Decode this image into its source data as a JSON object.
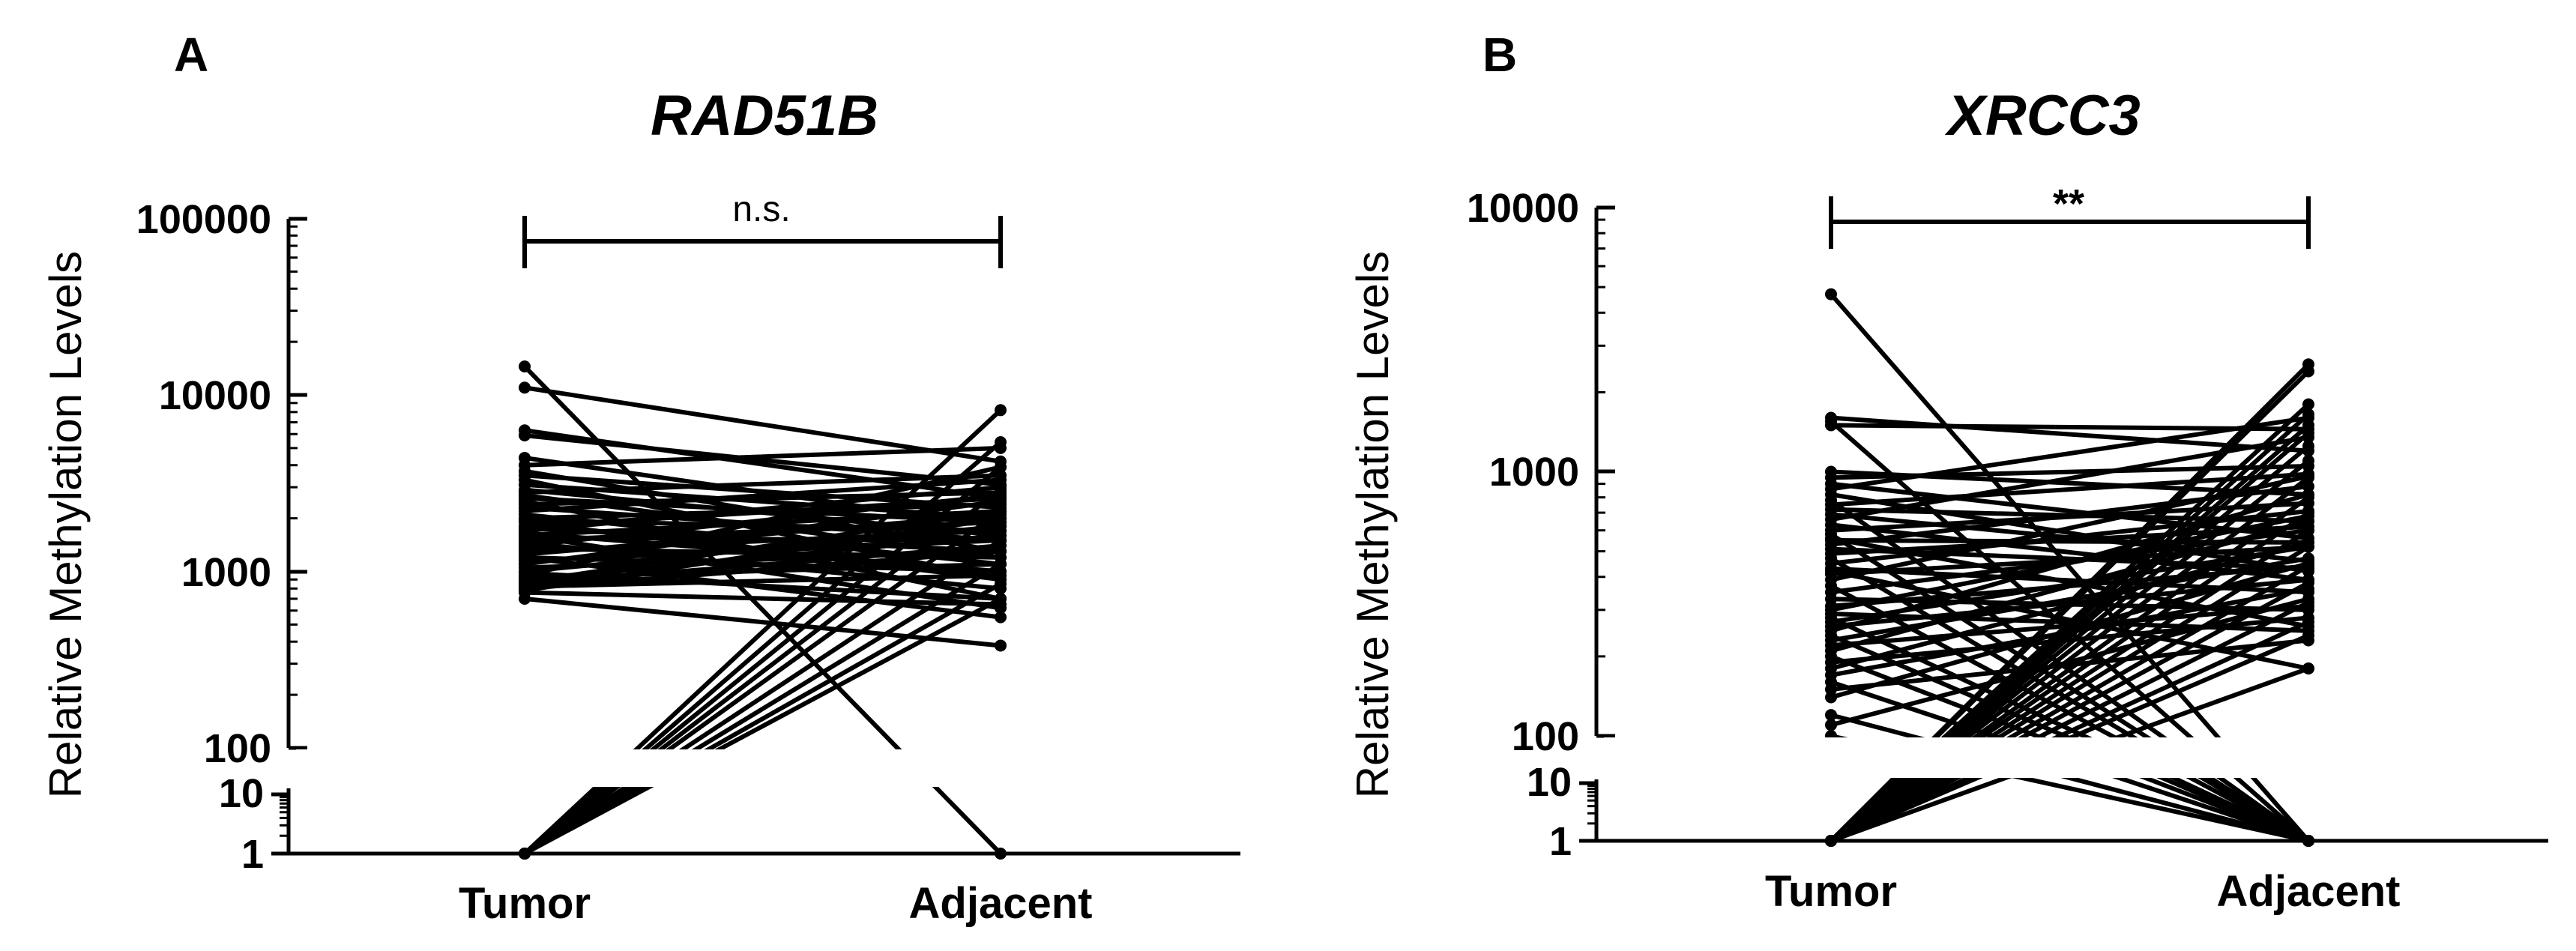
{
  "chart_data": [
    {
      "panel": "A",
      "type": "line",
      "title": "RAD51B",
      "ylabel": "Relative Methylation Levels",
      "yscale": "log",
      "axis_break": [
        10,
        100
      ],
      "ylim": [
        1,
        100000
      ],
      "yticks_lower": [
        "1",
        "10"
      ],
      "yticks_upper": [
        "100",
        "1000",
        "10000",
        "100000"
      ],
      "categories": [
        "Tumor",
        "Adjacent"
      ],
      "significance": "n.s.",
      "pairs": [
        [
          14500,
          1
        ],
        [
          11000,
          4200
        ],
        [
          6300,
          2600
        ],
        [
          5900,
          3100
        ],
        [
          4400,
          1800
        ],
        [
          4000,
          5000
        ],
        [
          3700,
          1300
        ],
        [
          3500,
          2300
        ],
        [
          3300,
          900
        ],
        [
          3100,
          2000
        ],
        [
          2900,
          1600
        ],
        [
          2800,
          3500
        ],
        [
          2700,
          1200
        ],
        [
          2600,
          1900
        ],
        [
          2500,
          700
        ],
        [
          2400,
          2800
        ],
        [
          2300,
          1500
        ],
        [
          2200,
          3300
        ],
        [
          2100,
          1100
        ],
        [
          2000,
          2400
        ],
        [
          1950,
          1700
        ],
        [
          1900,
          900
        ],
        [
          1800,
          2600
        ],
        [
          1750,
          1300
        ],
        [
          1700,
          3000
        ],
        [
          1650,
          1000
        ],
        [
          1600,
          2200
        ],
        [
          1550,
          1500
        ],
        [
          1500,
          1900
        ],
        [
          1450,
          800
        ],
        [
          1400,
          2700
        ],
        [
          1350,
          1200
        ],
        [
          1300,
          1700
        ],
        [
          1250,
          2100
        ],
        [
          1200,
          1000
        ],
        [
          1150,
          1500
        ],
        [
          1100,
          2500
        ],
        [
          1050,
          1300
        ],
        [
          1000,
          1800
        ],
        [
          980,
          700
        ],
        [
          950,
          3900
        ],
        [
          920,
          1100
        ],
        [
          900,
          1600
        ],
        [
          870,
          2200
        ],
        [
          850,
          1400
        ],
        [
          820,
          950
        ],
        [
          800,
          1300
        ],
        [
          780,
          2000
        ],
        [
          760,
          650
        ],
        [
          700,
          380
        ],
        [
          1200,
          550
        ],
        [
          1600,
          620
        ],
        [
          1,
          8200
        ],
        [
          1,
          5400
        ],
        [
          1,
          3900
        ],
        [
          1,
          2900
        ],
        [
          1,
          2200
        ],
        [
          1,
          1500
        ],
        [
          1,
          1100
        ],
        [
          1,
          850
        ],
        [
          1,
          700
        ]
      ]
    },
    {
      "panel": "B",
      "type": "line",
      "title": "XRCC3",
      "ylabel": "Relative Methylation Levels",
      "yscale": "log",
      "axis_break": [
        10,
        100
      ],
      "ylim": [
        1,
        10000
      ],
      "yticks_lower": [
        "1",
        "10"
      ],
      "yticks_upper": [
        "100",
        "1000",
        "10000"
      ],
      "categories": [
        "Tumor",
        "Adjacent"
      ],
      "significance": "**",
      "pairs": [
        [
          4700,
          1
        ],
        [
          1600,
          1200
        ],
        [
          1500,
          1450
        ],
        [
          1550,
          1
        ],
        [
          1000,
          820
        ],
        [
          950,
          1050
        ],
        [
          900,
          560
        ],
        [
          860,
          1600
        ],
        [
          820,
          420
        ],
        [
          780,
          1
        ],
        [
          750,
          980
        ],
        [
          720,
          650
        ],
        [
          690,
          460
        ],
        [
          660,
          1350
        ],
        [
          630,
          390
        ],
        [
          600,
          760
        ],
        [
          580,
          1
        ],
        [
          550,
          540
        ],
        [
          530,
          880
        ],
        [
          510,
          430
        ],
        [
          490,
          620
        ],
        [
          470,
          1
        ],
        [
          450,
          710
        ],
        [
          430,
          350
        ],
        [
          410,
          520
        ],
        [
          390,
          960
        ],
        [
          370,
          1
        ],
        [
          350,
          600
        ],
        [
          330,
          300
        ],
        [
          310,
          440
        ],
        [
          300,
          680
        ],
        [
          290,
          250
        ],
        [
          280,
          1
        ],
        [
          270,
          520
        ],
        [
          260,
          390
        ],
        [
          250,
          820
        ],
        [
          240,
          1
        ],
        [
          230,
          470
        ],
        [
          220,
          310
        ],
        [
          210,
          650
        ],
        [
          200,
          1
        ],
        [
          190,
          280
        ],
        [
          180,
          540
        ],
        [
          170,
          360
        ],
        [
          160,
          1
        ],
        [
          150,
          230
        ],
        [
          140,
          450
        ],
        [
          120,
          1
        ],
        [
          110,
          330
        ],
        [
          100,
          1
        ],
        [
          1,
          2550
        ],
        [
          1,
          2400
        ],
        [
          1,
          1800
        ],
        [
          1,
          1650
        ],
        [
          1,
          1500
        ],
        [
          1,
          1400
        ],
        [
          1,
          1250
        ],
        [
          1,
          1100
        ],
        [
          1,
          950
        ],
        [
          1,
          800
        ],
        [
          1,
          700
        ],
        [
          1,
          600
        ],
        [
          1,
          520
        ],
        [
          1,
          440
        ],
        [
          1,
          380
        ],
        [
          1,
          320
        ],
        [
          1,
          270
        ],
        [
          1,
          240
        ],
        [
          1,
          180
        ],
        [
          420,
          180
        ],
        [
          560,
          260
        ]
      ]
    }
  ]
}
